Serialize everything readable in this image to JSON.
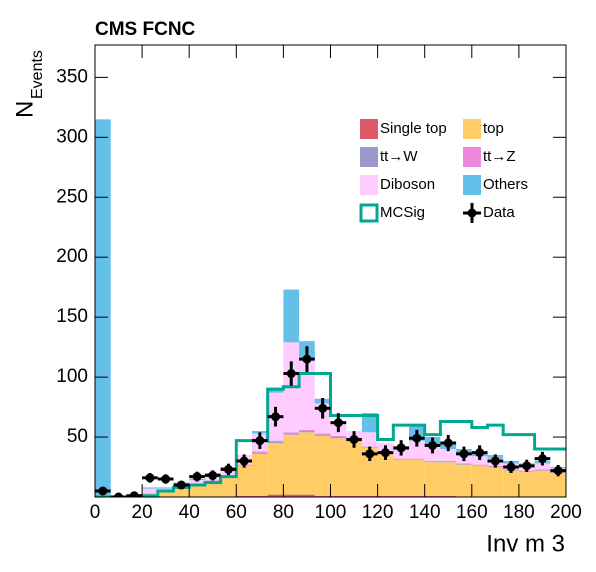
{
  "chart_data": {
    "type": "histogram",
    "stacked": true,
    "title": "CMS FCNC",
    "x_label": "Inv m 3",
    "y_label": "N",
    "y_label_sub": "Events",
    "bins": [
      0,
      6.67,
      13.33,
      20,
      26.67,
      33.33,
      40,
      46.67,
      53.33,
      60,
      66.67,
      73.33,
      80,
      86.67,
      93.33,
      100,
      106.67,
      113.33,
      120,
      126.67,
      133.33,
      140,
      146.67,
      153.33,
      160,
      166.67,
      173.33,
      180,
      186.67,
      193.33,
      200
    ],
    "xlim": [
      0,
      200
    ],
    "ylim": [
      0,
      377
    ],
    "xticks": [
      0,
      20,
      40,
      60,
      80,
      100,
      120,
      140,
      160,
      180,
      200
    ],
    "yticks": [
      50,
      100,
      150,
      200,
      250,
      300,
      350
    ],
    "grid": false,
    "legend": "upper right",
    "series": [
      {
        "name": "Single top",
        "color": "#de5a6a",
        "values": [
          0,
          0,
          0,
          0,
          0,
          0,
          0,
          0,
          0,
          1,
          1,
          2,
          2,
          2,
          1,
          1,
          1,
          1,
          1,
          1,
          1,
          1,
          1,
          0,
          0,
          0,
          0,
          0,
          0,
          0
        ]
      },
      {
        "name": "top",
        "color": "#ffcc66",
        "values": [
          0,
          0,
          0,
          3,
          5,
          8,
          10,
          13,
          17,
          25,
          35,
          43,
          50,
          52,
          50,
          48,
          45,
          40,
          35,
          30,
          30,
          28,
          28,
          27,
          26,
          25,
          22,
          21,
          22,
          20
        ]
      },
      {
        "name": "tt→W",
        "color": "#9999cc",
        "values": [
          0,
          0,
          0,
          0,
          0,
          0,
          0,
          0.5,
          0.5,
          0.5,
          1,
          1,
          1,
          1,
          1,
          1,
          0.5,
          0.5,
          0.5,
          0.5,
          0.5,
          0.5,
          0.5,
          0.5,
          0.5,
          0.5,
          0.5,
          0.5,
          0.5,
          0.5
        ]
      },
      {
        "name": "tt→Z",
        "color": "#ee88dd",
        "values": [
          0,
          0,
          0,
          0,
          0,
          0,
          0,
          0.5,
          0.5,
          0.5,
          1,
          1,
          1,
          1,
          1,
          1,
          0.5,
          0.5,
          0.5,
          0.5,
          0.5,
          0.5,
          0.5,
          0.5,
          0.5,
          0.5,
          0.5,
          0.5,
          0.5,
          0.5
        ]
      },
      {
        "name": "Diboson",
        "color": "#ffccff",
        "values": [
          0,
          0,
          1,
          4,
          2,
          3,
          4,
          5,
          6,
          8,
          15,
          40,
          75,
          58,
          25,
          10,
          8,
          12,
          8,
          7,
          15,
          12,
          10,
          8,
          7,
          6,
          5,
          4,
          5,
          3
        ]
      },
      {
        "name": "Others",
        "color": "#64c0e8",
        "values": [
          315,
          0,
          0,
          1,
          1,
          1,
          1,
          1,
          1,
          0,
          2,
          3,
          44,
          16,
          4,
          1,
          0,
          16,
          0,
          1,
          13,
          8,
          5,
          4,
          4,
          3,
          2,
          2,
          2,
          1
        ]
      }
    ],
    "signal": {
      "name": "MCSig",
      "color": "#00a88f",
      "values": [
        0,
        0,
        0,
        1,
        5,
        8,
        10,
        12,
        17,
        47,
        47,
        90,
        92,
        103,
        103,
        68,
        68,
        68,
        48,
        60,
        60,
        52,
        63,
        63,
        58,
        60,
        52,
        52,
        40,
        40
      ]
    },
    "data": {
      "name": "Data",
      "color": "#000000",
      "values": [
        5,
        0,
        1,
        16,
        15,
        10,
        17,
        18,
        23,
        30,
        47,
        67,
        103,
        115,
        74,
        62,
        48,
        36,
        37,
        41,
        49,
        43,
        45,
        36,
        37,
        30,
        25,
        26,
        32,
        22
      ],
      "errors": [
        2.2,
        0,
        1,
        4,
        3.9,
        3.2,
        4.1,
        4.2,
        4.8,
        5.5,
        6.9,
        8.2,
        10.1,
        10.7,
        8.6,
        7.9,
        6.9,
        6,
        6.1,
        6.4,
        7,
        6.6,
        6.7,
        6,
        6.1,
        5.5,
        5,
        5.1,
        5.7,
        4.7
      ]
    }
  }
}
